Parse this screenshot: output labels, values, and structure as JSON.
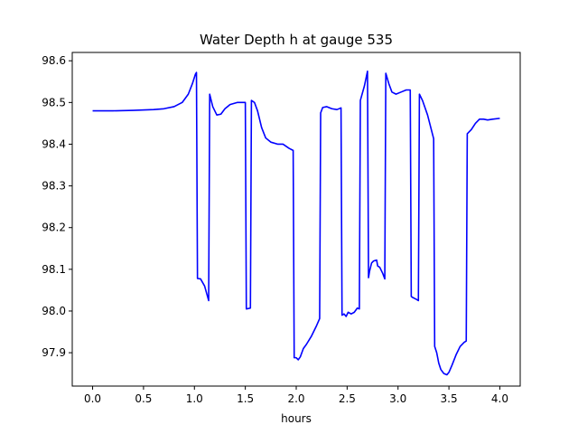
{
  "chart_data": {
    "type": "line",
    "title": "Water Depth h at gauge 535",
    "xlabel": "hours",
    "ylabel": "",
    "xlim": [
      -0.2,
      4.2
    ],
    "ylim": [
      97.82,
      98.62
    ],
    "xticks": [
      0.0,
      0.5,
      1.0,
      1.5,
      2.0,
      2.5,
      3.0,
      3.5,
      4.0
    ],
    "xtick_labels": [
      "0.0",
      "0.5",
      "1.0",
      "1.5",
      "2.0",
      "2.5",
      "3.0",
      "3.5",
      "4.0"
    ],
    "yticks": [
      97.9,
      98.0,
      98.1,
      98.2,
      98.3,
      98.4,
      98.5,
      98.6
    ],
    "ytick_labels": [
      "97.9",
      "98.0",
      "98.1",
      "98.2",
      "98.3",
      "98.4",
      "98.5",
      "98.6"
    ],
    "grid": false,
    "series": [
      {
        "color": "#0000ff",
        "x": [
          0.0,
          0.2,
          0.4,
          0.6,
          0.7,
          0.8,
          0.88,
          0.94,
          0.98,
          1.01,
          1.02,
          1.03,
          1.06,
          1.1,
          1.14,
          1.15,
          1.18,
          1.22,
          1.26,
          1.3,
          1.35,
          1.42,
          1.48,
          1.5,
          1.51,
          1.55,
          1.56,
          1.59,
          1.62,
          1.66,
          1.7,
          1.75,
          1.82,
          1.87,
          1.93,
          1.97,
          1.98,
          2.0,
          2.02,
          2.04,
          2.07,
          2.1,
          2.15,
          2.2,
          2.23,
          2.24,
          2.26,
          2.3,
          2.35,
          2.4,
          2.43,
          2.44,
          2.45,
          2.47,
          2.49,
          2.51,
          2.54,
          2.57,
          2.6,
          2.62,
          2.63,
          2.67,
          2.7,
          2.71,
          2.72,
          2.74,
          2.76,
          2.79,
          2.8,
          2.82,
          2.85,
          2.87,
          2.88,
          2.91,
          2.94,
          2.98,
          3.03,
          3.08,
          3.12,
          3.13,
          3.14,
          3.18,
          3.2,
          3.21,
          3.24,
          3.29,
          3.35,
          3.36,
          3.38,
          3.4,
          3.42,
          3.45,
          3.48,
          3.5,
          3.53,
          3.57,
          3.61,
          3.65,
          3.67,
          3.68,
          3.72,
          3.76,
          3.8,
          3.84,
          3.88,
          3.93,
          4.0
        ],
        "y": [
          98.48,
          98.48,
          98.481,
          98.483,
          98.485,
          98.49,
          98.5,
          98.52,
          98.545,
          98.568,
          98.572,
          98.078,
          98.077,
          98.06,
          98.025,
          98.52,
          98.49,
          98.47,
          98.472,
          98.485,
          98.495,
          98.5,
          98.5,
          98.5,
          98.005,
          98.007,
          98.505,
          98.5,
          98.48,
          98.44,
          98.415,
          98.405,
          98.4,
          98.4,
          98.39,
          98.385,
          97.888,
          97.888,
          97.883,
          97.89,
          97.91,
          97.92,
          97.94,
          97.965,
          97.982,
          98.475,
          98.488,
          98.49,
          98.485,
          98.483,
          98.486,
          98.487,
          97.99,
          97.993,
          97.987,
          97.997,
          97.993,
          97.997,
          98.007,
          98.005,
          98.505,
          98.54,
          98.575,
          98.08,
          98.095,
          98.115,
          98.12,
          98.122,
          98.108,
          98.105,
          98.09,
          98.077,
          98.57,
          98.545,
          98.525,
          98.52,
          98.525,
          98.53,
          98.53,
          98.035,
          98.033,
          98.028,
          98.025,
          98.52,
          98.505,
          98.47,
          98.413,
          97.915,
          97.9,
          97.875,
          97.86,
          97.85,
          97.847,
          97.853,
          97.87,
          97.895,
          97.915,
          97.925,
          97.928,
          98.425,
          98.435,
          98.45,
          98.46,
          98.46,
          98.458,
          98.46,
          98.462
        ]
      }
    ]
  }
}
